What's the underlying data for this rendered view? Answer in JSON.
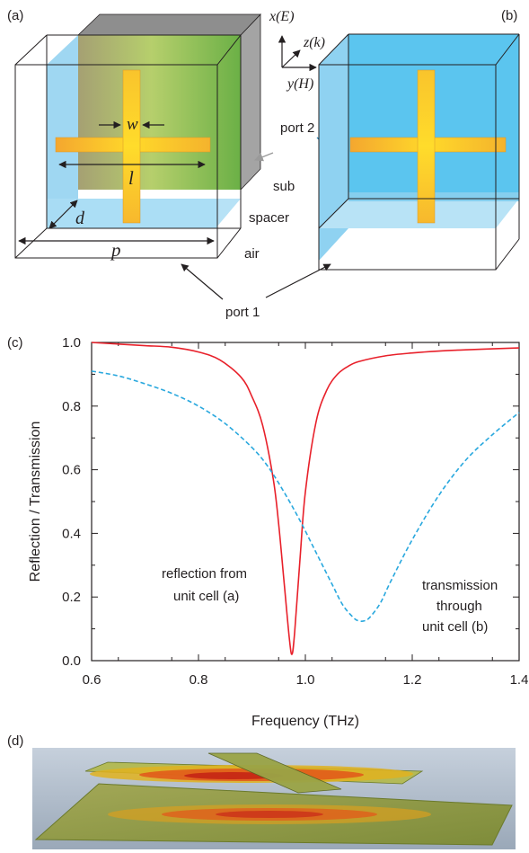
{
  "panels": {
    "a": "(a)",
    "b": "(b)",
    "c": "(c)",
    "d": "(d)"
  },
  "diagram": {
    "axes": {
      "x": "x(E)",
      "z": "z(k)",
      "y": "y(H)"
    },
    "dims": {
      "w": "w",
      "l": "l",
      "d": "d",
      "p": "p"
    },
    "labels": {
      "port2": "port 2",
      "port1": "port 1",
      "sub": "sub",
      "spacer": "spacer",
      "air": "air"
    }
  },
  "chart_data": {
    "type": "line",
    "xlabel": "Frequency (THz)",
    "ylabel": "Reflection / Transmission",
    "xlim": [
      0.6,
      1.4
    ],
    "ylim": [
      0.0,
      1.0
    ],
    "xticks": [
      "0.6",
      "0.8",
      "1.0",
      "1.2",
      "1.4"
    ],
    "yticks": [
      "0.0",
      "0.2",
      "0.4",
      "0.6",
      "0.8",
      "1.0"
    ],
    "series": [
      {
        "style": "solid",
        "color": "#e8202a",
        "x": [
          0.6,
          0.65,
          0.7,
          0.75,
          0.8,
          0.84,
          0.88,
          0.9,
          0.92,
          0.94,
          0.95,
          0.96,
          0.97,
          0.975,
          0.98,
          0.99,
          1.0,
          1.02,
          1.04,
          1.06,
          1.08,
          1.1,
          1.15,
          1.2,
          1.25,
          1.3,
          1.35,
          1.4
        ],
        "y": [
          1.0,
          0.995,
          0.99,
          0.985,
          0.97,
          0.945,
          0.89,
          0.83,
          0.74,
          0.57,
          0.43,
          0.25,
          0.07,
          0.02,
          0.09,
          0.32,
          0.53,
          0.75,
          0.85,
          0.9,
          0.925,
          0.94,
          0.958,
          0.967,
          0.973,
          0.977,
          0.98,
          0.983
        ]
      },
      {
        "style": "dashed",
        "color": "#29a8de",
        "x": [
          0.6,
          0.65,
          0.7,
          0.75,
          0.8,
          0.85,
          0.9,
          0.93,
          0.96,
          0.99,
          1.02,
          1.05,
          1.07,
          1.09,
          1.1,
          1.11,
          1.12,
          1.14,
          1.16,
          1.2,
          1.25,
          1.3,
          1.35,
          1.4
        ],
        "y": [
          0.91,
          0.895,
          0.87,
          0.84,
          0.8,
          0.745,
          0.67,
          0.61,
          0.53,
          0.44,
          0.34,
          0.24,
          0.175,
          0.135,
          0.125,
          0.125,
          0.135,
          0.18,
          0.25,
          0.38,
          0.52,
          0.63,
          0.71,
          0.78
        ]
      }
    ],
    "annotations": [
      {
        "lines": [
          "reflection from",
          "unit cell (a)"
        ]
      },
      {
        "lines": [
          "transmission",
          "through",
          "unit cell (b)"
        ]
      }
    ]
  }
}
